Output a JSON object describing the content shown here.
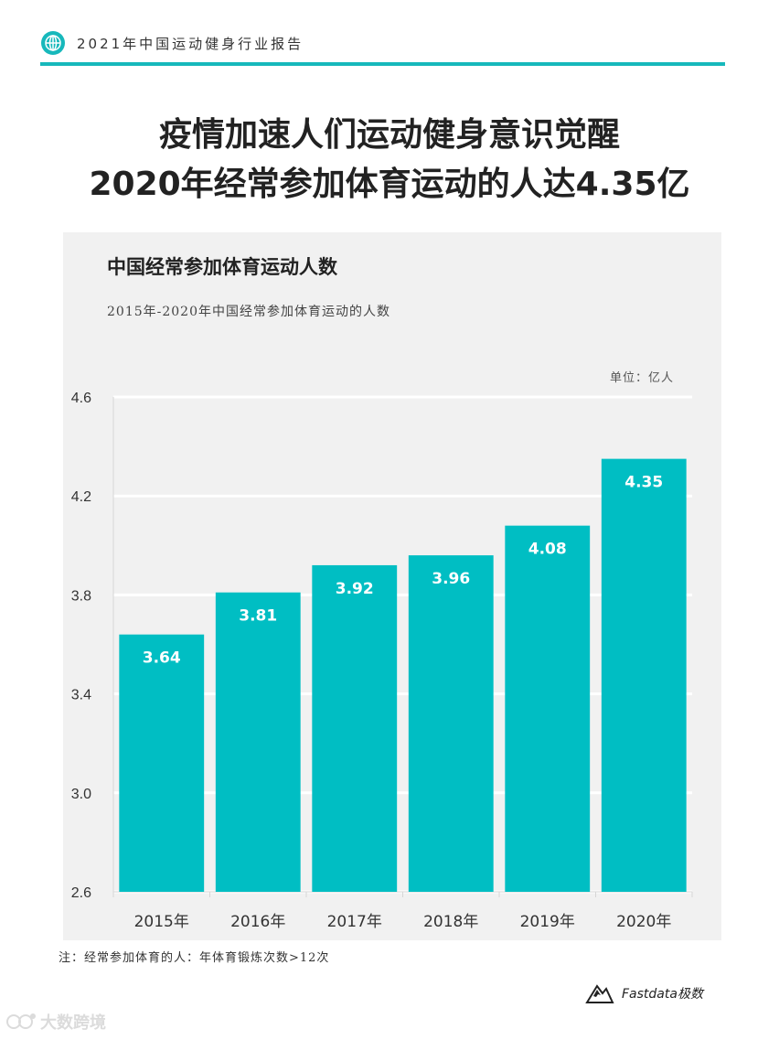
{
  "header": {
    "report_title": "2021年中国运动健身行业报告",
    "icon": "globe-icon",
    "accent": "#17b8bb"
  },
  "headline": {
    "line1": "疫情加速人们运动健身意识觉醒",
    "line2": "2020年经常参加体育运动的人达4.35亿"
  },
  "chart_data": {
    "type": "bar",
    "title": "中国经常参加体育运动人数",
    "subtitle": "2015年-2020年中国经常参加体育运动的人数",
    "unit": "单位：亿人",
    "categories": [
      "2015年",
      "2016年",
      "2017年",
      "2018年",
      "2019年",
      "2020年"
    ],
    "values": [
      3.64,
      3.81,
      3.92,
      3.96,
      4.08,
      4.35
    ],
    "value_labels": [
      "3.64",
      "3.81",
      "3.92",
      "3.96",
      "4.08",
      "4.35"
    ],
    "yticks": [
      "2.6",
      "3.0",
      "3.4",
      "3.8",
      "4.2",
      "4.6"
    ],
    "ylim": [
      2.6,
      4.6
    ],
    "bar_color": "#00bec3",
    "grid": true
  },
  "note": "注：经常参加体育的人：年体育锻炼次数>12次",
  "logo": {
    "text": "Fastdata极数"
  },
  "watermark": {
    "text": "大数跨境"
  }
}
